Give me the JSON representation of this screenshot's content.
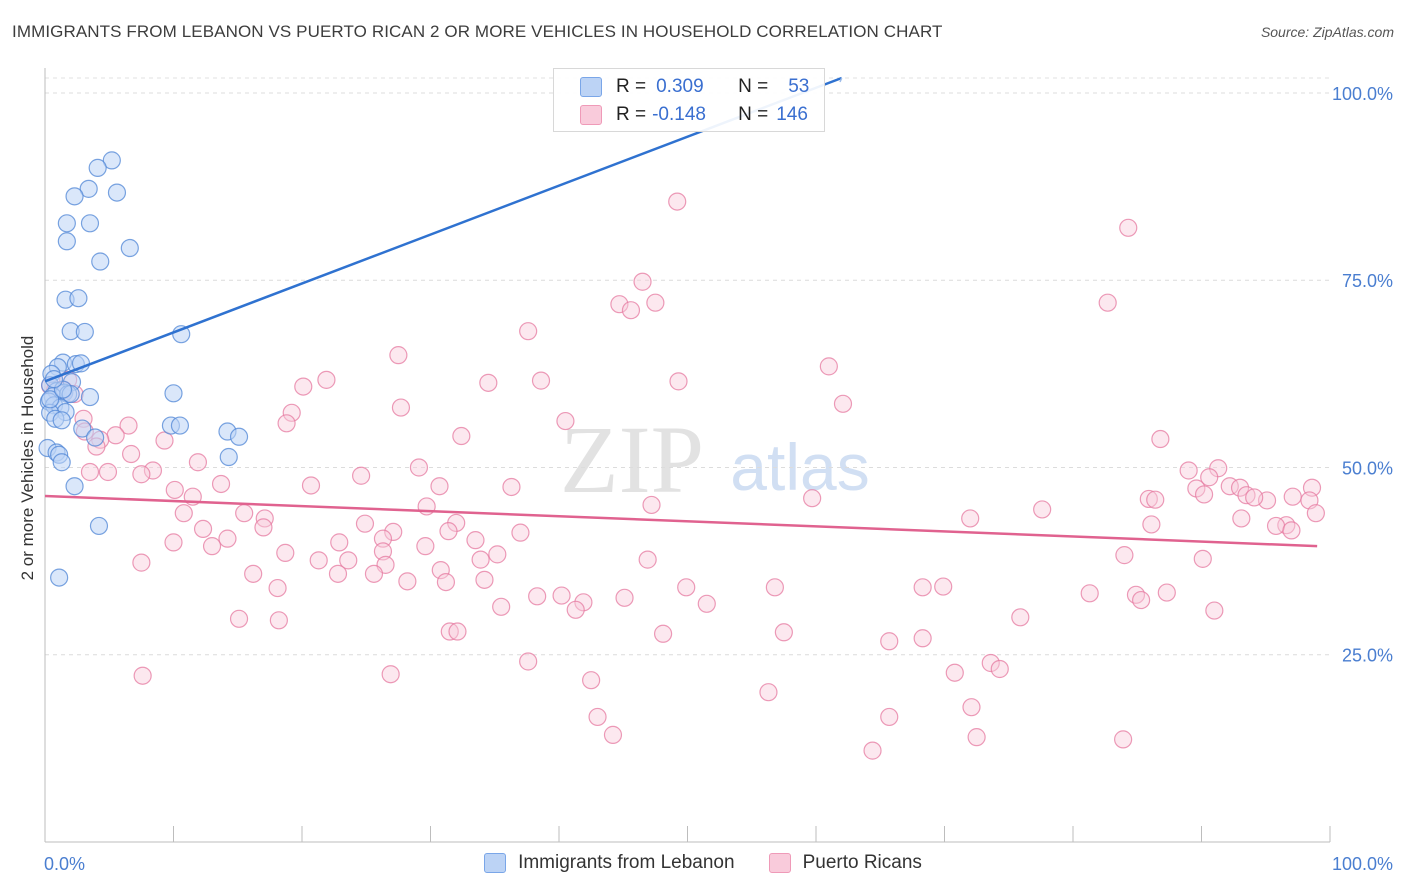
{
  "header": {
    "title": "IMMIGRANTS FROM LEBANON VS PUERTO RICAN 2 OR MORE VEHICLES IN HOUSEHOLD CORRELATION CHART",
    "source": "Source: ZipAtlas.com"
  },
  "watermark": {
    "zip": "ZIP",
    "atlas": "atlas"
  },
  "stats": [
    {
      "r_label": "R =",
      "r_value": "0.309",
      "n_label": "N =",
      "n_value": "53",
      "color": "#7aa6e8",
      "fill": "#bcd3f5"
    },
    {
      "r_label": "R =",
      "r_value": "-0.148",
      "n_label": "N =",
      "n_value": "146",
      "color": "#ef9ab8",
      "fill": "#f9cbdb"
    }
  ],
  "chart_data": {
    "type": "scatter",
    "ylabel": "2 or more Vehicles in Household",
    "xlabel": "",
    "xlim": [
      0,
      100
    ],
    "ylim": [
      0,
      102
    ],
    "x_tick_labels": [
      {
        "value": 0,
        "label": "0.0%"
      },
      {
        "value": 100,
        "label": "100.0%"
      }
    ],
    "y_tick_labels": [
      {
        "value": 25,
        "label": "25.0%"
      },
      {
        "value": 50,
        "label": "50.0%"
      },
      {
        "value": 75,
        "label": "75.0%"
      },
      {
        "value": 100,
        "label": "100.0%"
      }
    ],
    "grid": "horizontal dashed",
    "legend_position": "bottom-center",
    "series": [
      {
        "name": "Immigrants from Lebanon",
        "color": "#4f86d6",
        "fill": "#bcd3f5",
        "trend": {
          "x": [
            0,
            62
          ],
          "y": [
            61.5,
            102
          ]
        },
        "trend_dashed": {
          "x": [
            62,
            62
          ],
          "y": [
            102,
            102
          ]
        },
        "points": [
          [
            5.2,
            91.0
          ],
          [
            4.1,
            90.0
          ],
          [
            3.4,
            87.2
          ],
          [
            5.6,
            86.7
          ],
          [
            2.3,
            86.2
          ],
          [
            1.7,
            82.6
          ],
          [
            3.5,
            82.6
          ],
          [
            1.7,
            80.2
          ],
          [
            6.6,
            79.3
          ],
          [
            4.3,
            77.5
          ],
          [
            1.6,
            72.4
          ],
          [
            2.6,
            72.6
          ],
          [
            2.0,
            68.2
          ],
          [
            3.1,
            68.1
          ],
          [
            10.6,
            67.8
          ],
          [
            1.4,
            64.0
          ],
          [
            2.4,
            63.8
          ],
          [
            1.0,
            63.4
          ],
          [
            0.5,
            62.5
          ],
          [
            2.1,
            61.4
          ],
          [
            0.4,
            61.0
          ],
          [
            0.9,
            60.2
          ],
          [
            1.5,
            60.0
          ],
          [
            0.6,
            59.5
          ],
          [
            1.8,
            59.8
          ],
          [
            10.0,
            59.9
          ],
          [
            3.5,
            59.4
          ],
          [
            0.3,
            58.8
          ],
          [
            0.7,
            58.3
          ],
          [
            1.2,
            58.0
          ],
          [
            1.6,
            57.4
          ],
          [
            0.4,
            57.3
          ],
          [
            0.8,
            56.5
          ],
          [
            1.3,
            56.3
          ],
          [
            9.8,
            55.6
          ],
          [
            10.5,
            55.6
          ],
          [
            2.9,
            55.2
          ],
          [
            3.9,
            54.0
          ],
          [
            14.2,
            54.8
          ],
          [
            15.1,
            54.1
          ],
          [
            0.2,
            52.6
          ],
          [
            0.9,
            52.0
          ],
          [
            1.1,
            51.7
          ],
          [
            14.3,
            51.4
          ],
          [
            1.3,
            50.7
          ],
          [
            2.3,
            47.5
          ],
          [
            4.2,
            42.2
          ],
          [
            1.1,
            35.3
          ],
          [
            0.4,
            59.1
          ],
          [
            2.0,
            59.8
          ],
          [
            1.4,
            60.4
          ],
          [
            0.7,
            61.8
          ],
          [
            2.8,
            63.9
          ]
        ]
      },
      {
        "name": "Puerto Ricans",
        "color": "#e57aa0",
        "fill": "#f9cbdb",
        "trend": {
          "x": [
            0,
            99
          ],
          "y": [
            46.2,
            39.5
          ]
        },
        "points": [
          [
            49.2,
            85.5
          ],
          [
            84.3,
            82.0
          ],
          [
            46.5,
            74.8
          ],
          [
            82.7,
            72.0
          ],
          [
            44.7,
            71.8
          ],
          [
            47.5,
            72.0
          ],
          [
            45.6,
            71.0
          ],
          [
            37.6,
            68.2
          ],
          [
            27.5,
            65.0
          ],
          [
            61.0,
            63.5
          ],
          [
            21.9,
            61.7
          ],
          [
            34.5,
            61.3
          ],
          [
            38.6,
            61.6
          ],
          [
            49.3,
            61.5
          ],
          [
            20.1,
            60.8
          ],
          [
            0.4,
            60.9
          ],
          [
            1.8,
            61.7
          ],
          [
            2.3,
            59.8
          ],
          [
            0.8,
            60.4
          ],
          [
            1.5,
            60.3
          ],
          [
            62.1,
            58.5
          ],
          [
            19.2,
            57.3
          ],
          [
            27.7,
            58.0
          ],
          [
            40.5,
            56.2
          ],
          [
            3.0,
            56.5
          ],
          [
            6.5,
            55.6
          ],
          [
            18.8,
            55.9
          ],
          [
            5.5,
            54.3
          ],
          [
            3.1,
            54.8
          ],
          [
            32.4,
            54.2
          ],
          [
            4.3,
            53.7
          ],
          [
            9.3,
            53.6
          ],
          [
            86.8,
            53.8
          ],
          [
            4.0,
            52.8
          ],
          [
            6.7,
            51.8
          ],
          [
            11.9,
            50.7
          ],
          [
            29.1,
            50.0
          ],
          [
            8.4,
            49.6
          ],
          [
            4.9,
            49.4
          ],
          [
            7.5,
            49.1
          ],
          [
            24.6,
            48.9
          ],
          [
            3.5,
            49.4
          ],
          [
            89.0,
            49.6
          ],
          [
            91.3,
            49.9
          ],
          [
            90.6,
            48.7
          ],
          [
            92.2,
            47.5
          ],
          [
            89.6,
            47.2
          ],
          [
            93.0,
            47.3
          ],
          [
            10.1,
            47.0
          ],
          [
            13.7,
            47.8
          ],
          [
            20.7,
            47.6
          ],
          [
            30.7,
            47.5
          ],
          [
            36.3,
            47.4
          ],
          [
            98.6,
            47.3
          ],
          [
            11.5,
            46.1
          ],
          [
            90.2,
            46.4
          ],
          [
            93.5,
            46.3
          ],
          [
            95.1,
            45.6
          ],
          [
            97.1,
            46.1
          ],
          [
            98.4,
            45.6
          ],
          [
            94.1,
            46.0
          ],
          [
            59.7,
            45.9
          ],
          [
            85.9,
            45.8
          ],
          [
            86.4,
            45.7
          ],
          [
            47.2,
            45.0
          ],
          [
            29.7,
            44.8
          ],
          [
            10.8,
            43.9
          ],
          [
            15.5,
            43.9
          ],
          [
            17.1,
            43.2
          ],
          [
            77.6,
            44.4
          ],
          [
            72.0,
            43.2
          ],
          [
            93.1,
            43.2
          ],
          [
            96.6,
            42.3
          ],
          [
            98.9,
            43.9
          ],
          [
            32.0,
            42.6
          ],
          [
            12.3,
            41.8
          ],
          [
            17.0,
            42.0
          ],
          [
            24.9,
            42.5
          ],
          [
            27.1,
            41.4
          ],
          [
            31.4,
            41.5
          ],
          [
            37.0,
            41.3
          ],
          [
            95.8,
            42.2
          ],
          [
            97.0,
            41.6
          ],
          [
            86.1,
            42.4
          ],
          [
            14.2,
            40.5
          ],
          [
            13.0,
            39.5
          ],
          [
            10.0,
            40.0
          ],
          [
            22.9,
            40.0
          ],
          [
            26.3,
            40.5
          ],
          [
            33.5,
            40.3
          ],
          [
            18.7,
            38.6
          ],
          [
            26.3,
            38.8
          ],
          [
            29.6,
            39.5
          ],
          [
            35.2,
            38.4
          ],
          [
            21.3,
            37.6
          ],
          [
            23.6,
            37.6
          ],
          [
            33.9,
            37.7
          ],
          [
            26.5,
            37.0
          ],
          [
            30.8,
            36.3
          ],
          [
            7.5,
            37.3
          ],
          [
            46.9,
            37.7
          ],
          [
            84.0,
            38.3
          ],
          [
            90.1,
            37.8
          ],
          [
            16.2,
            35.8
          ],
          [
            22.8,
            35.8
          ],
          [
            25.6,
            35.8
          ],
          [
            28.2,
            34.8
          ],
          [
            34.2,
            35.0
          ],
          [
            31.2,
            34.7
          ],
          [
            18.1,
            33.9
          ],
          [
            49.9,
            34.0
          ],
          [
            56.8,
            34.0
          ],
          [
            68.3,
            34.0
          ],
          [
            69.9,
            34.1
          ],
          [
            81.3,
            33.2
          ],
          [
            84.9,
            33.0
          ],
          [
            85.3,
            32.3
          ],
          [
            87.3,
            33.3
          ],
          [
            38.3,
            32.8
          ],
          [
            40.2,
            32.9
          ],
          [
            45.1,
            32.6
          ],
          [
            41.9,
            32.0
          ],
          [
            51.5,
            31.8
          ],
          [
            35.5,
            31.4
          ],
          [
            41.3,
            31.0
          ],
          [
            91.0,
            30.9
          ],
          [
            15.1,
            29.8
          ],
          [
            18.2,
            29.6
          ],
          [
            75.9,
            30.0
          ],
          [
            31.5,
            28.1
          ],
          [
            32.1,
            28.1
          ],
          [
            48.1,
            27.8
          ],
          [
            57.5,
            28.0
          ],
          [
            65.7,
            26.8
          ],
          [
            68.3,
            27.2
          ],
          [
            37.6,
            24.1
          ],
          [
            70.8,
            22.6
          ],
          [
            73.6,
            23.9
          ],
          [
            74.3,
            23.1
          ],
          [
            7.6,
            22.2
          ],
          [
            26.9,
            22.4
          ],
          [
            42.5,
            21.6
          ],
          [
            56.3,
            20.0
          ],
          [
            72.1,
            18.0
          ],
          [
            43.0,
            16.7
          ],
          [
            65.7,
            16.7
          ],
          [
            44.2,
            14.3
          ],
          [
            72.5,
            14.0
          ],
          [
            83.9,
            13.7
          ],
          [
            64.4,
            12.2
          ]
        ]
      }
    ]
  }
}
